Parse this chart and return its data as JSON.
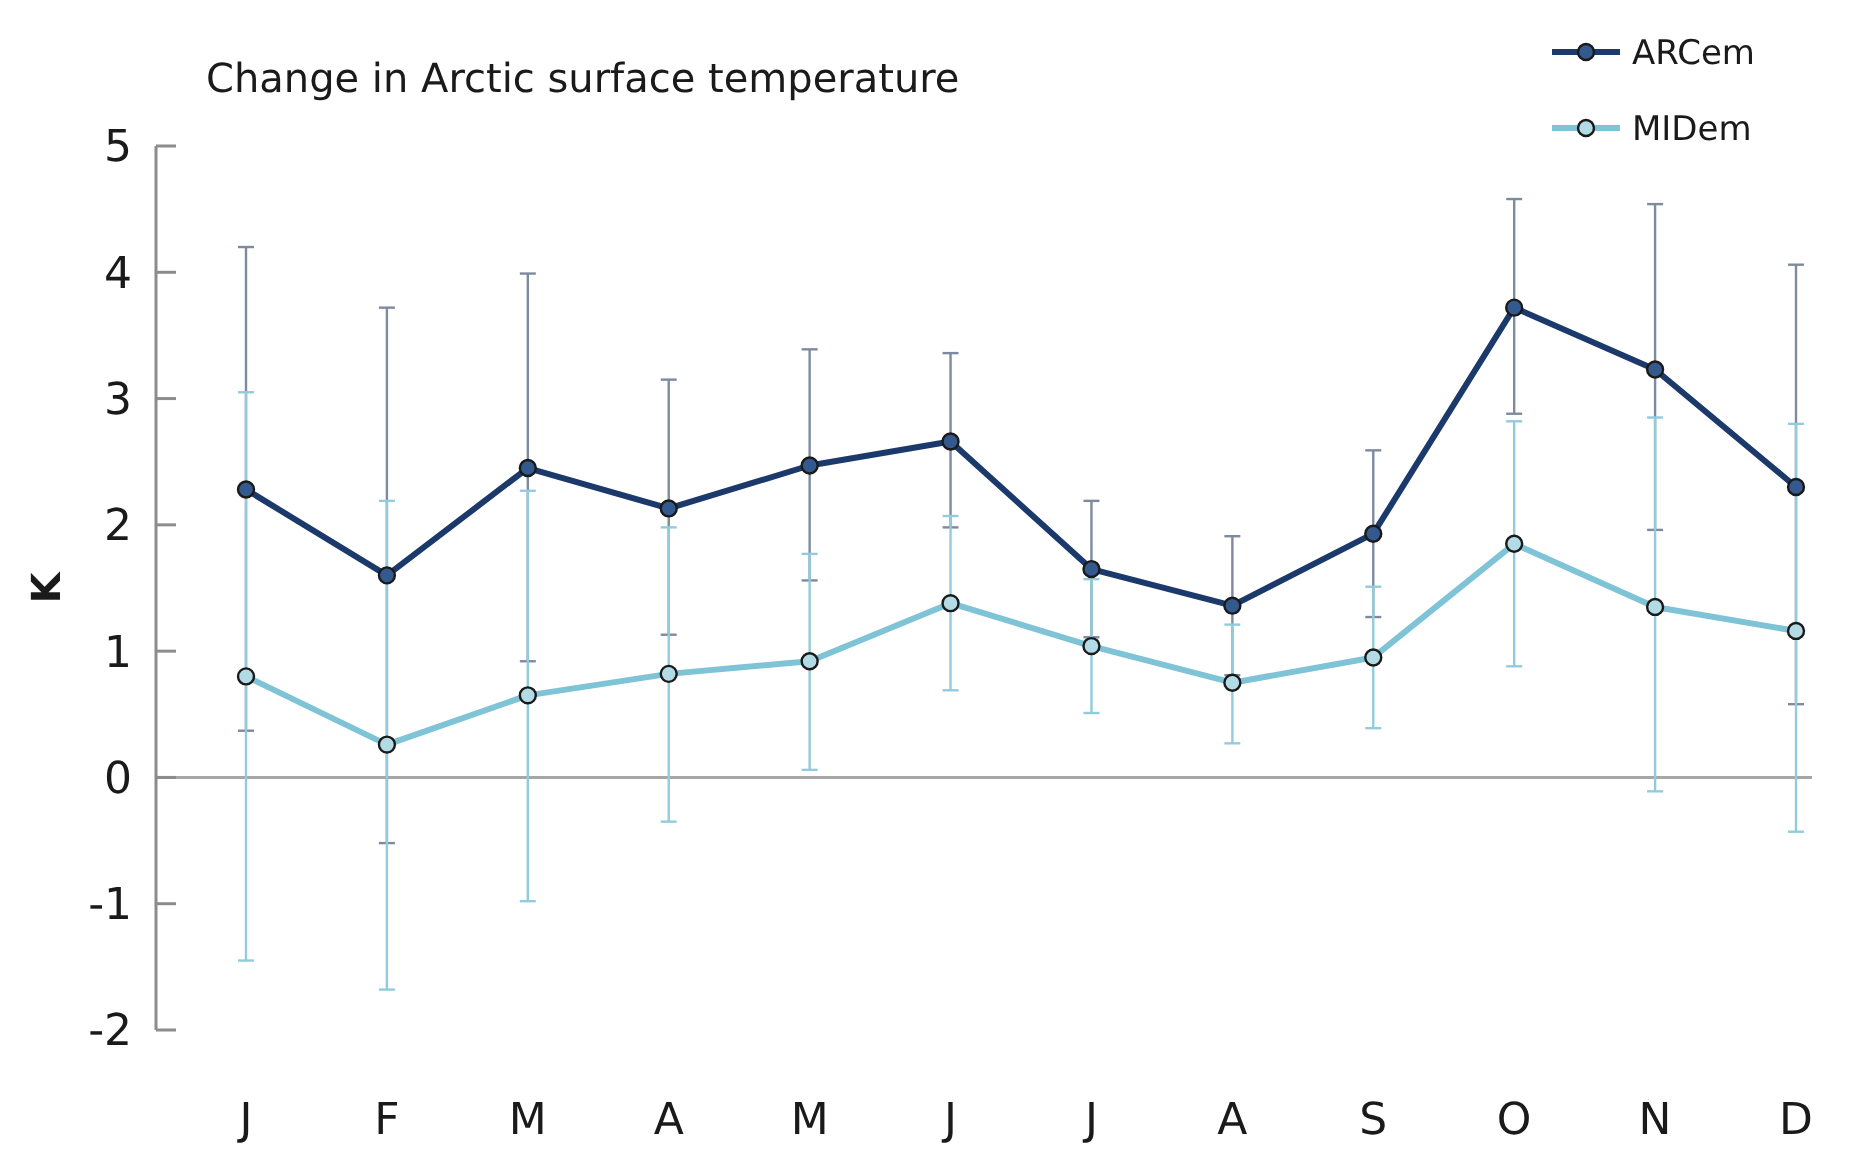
{
  "chart_data": {
    "type": "line",
    "title": "Change in Arctic surface temperature",
    "ylabel": "K",
    "categories": [
      "J",
      "F",
      "M",
      "A",
      "M",
      "J",
      "J",
      "A",
      "S",
      "O",
      "N",
      "D"
    ],
    "ylim": [
      -2,
      5
    ],
    "yticks": [
      -2,
      -1,
      0,
      1,
      2,
      3,
      4,
      5
    ],
    "grid": false,
    "legend": "top right",
    "marker": "circle",
    "line_style": "solid",
    "ref_lines": [
      {
        "axis": "y",
        "value": 0,
        "color": "#a6a6a6"
      }
    ],
    "series": [
      {
        "name": "ARCem",
        "color": "#1b3a6b",
        "values": [
          2.28,
          1.6,
          2.45,
          2.13,
          2.47,
          2.66,
          1.65,
          1.36,
          1.93,
          3.72,
          3.23,
          2.3
        ],
        "errors": [
          [
            0.37,
            4.2
          ],
          [
            -0.52,
            3.72
          ],
          [
            0.92,
            3.99
          ],
          [
            1.13,
            3.15
          ],
          [
            1.56,
            3.39
          ],
          [
            1.98,
            3.36
          ],
          [
            1.11,
            2.19
          ],
          [
            0.81,
            1.91
          ],
          [
            1.27,
            2.59
          ],
          [
            2.88,
            4.58
          ],
          [
            1.96,
            4.54
          ],
          [
            0.58,
            4.06
          ]
        ]
      },
      {
        "name": "MIDem",
        "color": "#7fc3d6",
        "values": [
          0.8,
          0.26,
          0.65,
          0.82,
          0.92,
          1.38,
          1.04,
          0.75,
          0.95,
          1.85,
          1.35,
          1.16
        ],
        "errors": [
          [
            -1.45,
            3.05
          ],
          [
            -1.68,
            2.19
          ],
          [
            -0.98,
            2.27
          ],
          [
            -0.35,
            1.98
          ],
          [
            0.06,
            1.77
          ],
          [
            0.69,
            2.07
          ],
          [
            0.51,
            1.57
          ],
          [
            0.27,
            1.21
          ],
          [
            0.39,
            1.51
          ],
          [
            0.88,
            2.82
          ],
          [
            -0.11,
            2.85
          ],
          [
            -0.43,
            2.8
          ]
        ]
      }
    ]
  }
}
